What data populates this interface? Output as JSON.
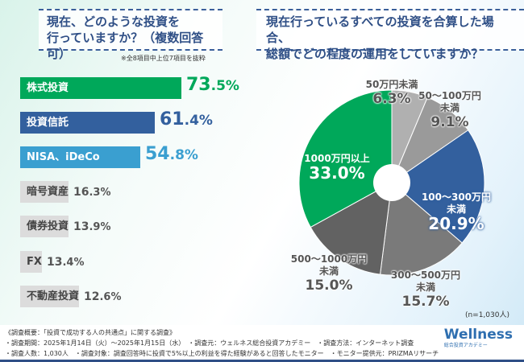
{
  "left": {
    "question": "現在、どのような投資を\n行っていますか？（複数回答可）",
    "note": "※全8項目中上位7項目を抜粋"
  },
  "right": {
    "question": "現在行っているすべての投資を合算した場合、\n総額でどの程度の運用をしていますか？",
    "n": "(n=1,030人)"
  },
  "chart_data": [
    {
      "type": "bar",
      "orientation": "horizontal",
      "categories": [
        "株式投資",
        "投資信託",
        "NISA、iDeCo",
        "暗号資産",
        "債券投資",
        "FX",
        "不動産投資"
      ],
      "values": [
        73.5,
        61.4,
        54.8,
        16.3,
        13.9,
        13.4,
        12.6
      ],
      "labels": [
        "73.5%",
        "61.4%",
        "54.8%",
        "16.3%",
        "13.9%",
        "13.4%",
        "12.6%"
      ],
      "colors": [
        "#00a85a",
        "#33609e",
        "#3a9fd0",
        "#dcdcdc",
        "#dcdcdc",
        "#dcdcdc",
        "#dcdcdc"
      ]
    },
    {
      "type": "pie",
      "donut": true,
      "categories": [
        "50万円未満",
        "50～100万円未満",
        "100～300万円未満",
        "300～500万円未満",
        "500～1000万円未満",
        "1000万円以上"
      ],
      "values": [
        6.3,
        9.1,
        20.9,
        15.7,
        15.0,
        33.0
      ],
      "labels": [
        "6.3%",
        "9.1%",
        "20.9%",
        "15.7%",
        "15.0%",
        "33.0%"
      ],
      "colors": [
        "#b0b0b0",
        "#9a9a9a",
        "#33609e",
        "#7a7a7a",
        "#626262",
        "#00a85a"
      ]
    }
  ],
  "footer": {
    "line1": "《調査概要：「投資で成功する人の共通点」に関する調査》",
    "line2": "・調査期間：2025年1月14日（火）～2025年1月15日（水）　・調査元：ウェルネス総合投資アカデミー　・調査方法：インターネット調査",
    "line3": "・調査人数：1,030人　・調査対象：調査回答時に投資で5%以上の利益を得た経験があると回答したモニター　・モニター提供元：PRIZMAリサーチ",
    "logo": "Wellness",
    "logo_sub": "総合投資アカデミー"
  }
}
